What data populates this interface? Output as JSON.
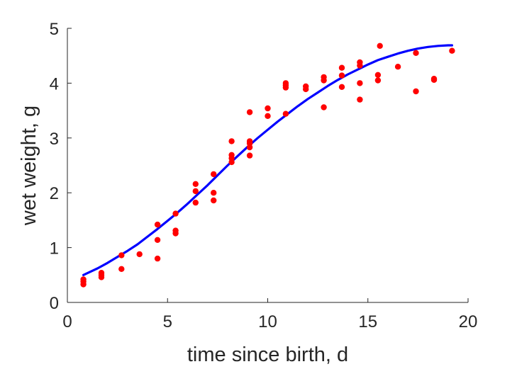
{
  "chart_data": {
    "type": "scatter",
    "title": "",
    "xlabel": "time since birth, d",
    "ylabel": "wet weight, g",
    "xlim": [
      0,
      20
    ],
    "ylim": [
      0,
      5
    ],
    "xticks": [
      0,
      5,
      10,
      15,
      20
    ],
    "yticks": [
      0,
      1,
      2,
      3,
      4,
      5
    ],
    "grid": false,
    "colors": {
      "points": "#ff0000",
      "fit": "#0000ff",
      "axis": "#262626"
    },
    "series": [
      {
        "kind": "points",
        "points": [
          [
            0.8,
            0.33
          ],
          [
            0.8,
            0.38
          ],
          [
            0.8,
            0.42
          ],
          [
            1.7,
            0.46
          ],
          [
            1.7,
            0.5
          ],
          [
            1.7,
            0.54
          ],
          [
            2.7,
            0.61
          ],
          [
            2.7,
            0.86
          ],
          [
            3.6,
            0.88
          ],
          [
            4.5,
            0.8
          ],
          [
            4.5,
            1.14
          ],
          [
            4.5,
            1.42
          ],
          [
            5.4,
            1.26
          ],
          [
            5.4,
            1.31
          ],
          [
            5.4,
            1.62
          ],
          [
            6.4,
            1.82
          ],
          [
            6.4,
            2.03
          ],
          [
            6.4,
            2.16
          ],
          [
            7.3,
            1.86
          ],
          [
            7.3,
            2.0
          ],
          [
            7.3,
            2.34
          ],
          [
            8.2,
            2.56
          ],
          [
            8.2,
            2.63
          ],
          [
            8.2,
            2.69
          ],
          [
            8.2,
            2.94
          ],
          [
            9.1,
            2.68
          ],
          [
            9.1,
            2.83
          ],
          [
            9.1,
            2.9
          ],
          [
            9.1,
            2.94
          ],
          [
            9.1,
            3.47
          ],
          [
            10.0,
            3.4
          ],
          [
            10.0,
            3.54
          ],
          [
            10.9,
            3.44
          ],
          [
            10.9,
            3.92
          ],
          [
            10.9,
            3.96
          ],
          [
            10.9,
            4.0
          ],
          [
            11.9,
            3.89
          ],
          [
            11.9,
            3.94
          ],
          [
            12.8,
            3.56
          ],
          [
            12.8,
            4.05
          ],
          [
            12.8,
            4.11
          ],
          [
            13.7,
            3.93
          ],
          [
            13.7,
            4.14
          ],
          [
            13.7,
            4.28
          ],
          [
            14.6,
            3.7
          ],
          [
            14.6,
            4.0
          ],
          [
            14.6,
            4.32
          ],
          [
            14.6,
            4.38
          ],
          [
            15.5,
            4.05
          ],
          [
            15.5,
            4.15
          ],
          [
            15.6,
            4.68
          ],
          [
            16.5,
            4.3
          ],
          [
            17.4,
            3.85
          ],
          [
            17.4,
            4.55
          ],
          [
            18.3,
            4.06
          ],
          [
            18.3,
            4.08
          ],
          [
            19.2,
            4.59
          ]
        ]
      },
      {
        "kind": "line",
        "points": [
          [
            0.8,
            0.5
          ],
          [
            1.5,
            0.62
          ],
          [
            2.0,
            0.72
          ],
          [
            2.5,
            0.83
          ],
          [
            3.0,
            0.94
          ],
          [
            3.5,
            1.06
          ],
          [
            4.0,
            1.2
          ],
          [
            4.5,
            1.34
          ],
          [
            5.0,
            1.49
          ],
          [
            5.5,
            1.64
          ],
          [
            6.0,
            1.8
          ],
          [
            6.5,
            1.97
          ],
          [
            7.0,
            2.14
          ],
          [
            7.5,
            2.32
          ],
          [
            8.0,
            2.5
          ],
          [
            8.5,
            2.67
          ],
          [
            9.0,
            2.84
          ],
          [
            9.5,
            3.0
          ],
          [
            10.0,
            3.15
          ],
          [
            10.5,
            3.3
          ],
          [
            11.0,
            3.44
          ],
          [
            11.5,
            3.58
          ],
          [
            12.0,
            3.71
          ],
          [
            12.5,
            3.83
          ],
          [
            13.0,
            3.95
          ],
          [
            13.5,
            4.06
          ],
          [
            14.0,
            4.16
          ],
          [
            14.5,
            4.25
          ],
          [
            15.0,
            4.34
          ],
          [
            15.5,
            4.42
          ],
          [
            16.0,
            4.48
          ],
          [
            16.5,
            4.54
          ],
          [
            17.0,
            4.59
          ],
          [
            17.5,
            4.63
          ],
          [
            18.0,
            4.66
          ],
          [
            18.5,
            4.68
          ],
          [
            19.0,
            4.69
          ],
          [
            19.2,
            4.69
          ]
        ]
      }
    ]
  }
}
